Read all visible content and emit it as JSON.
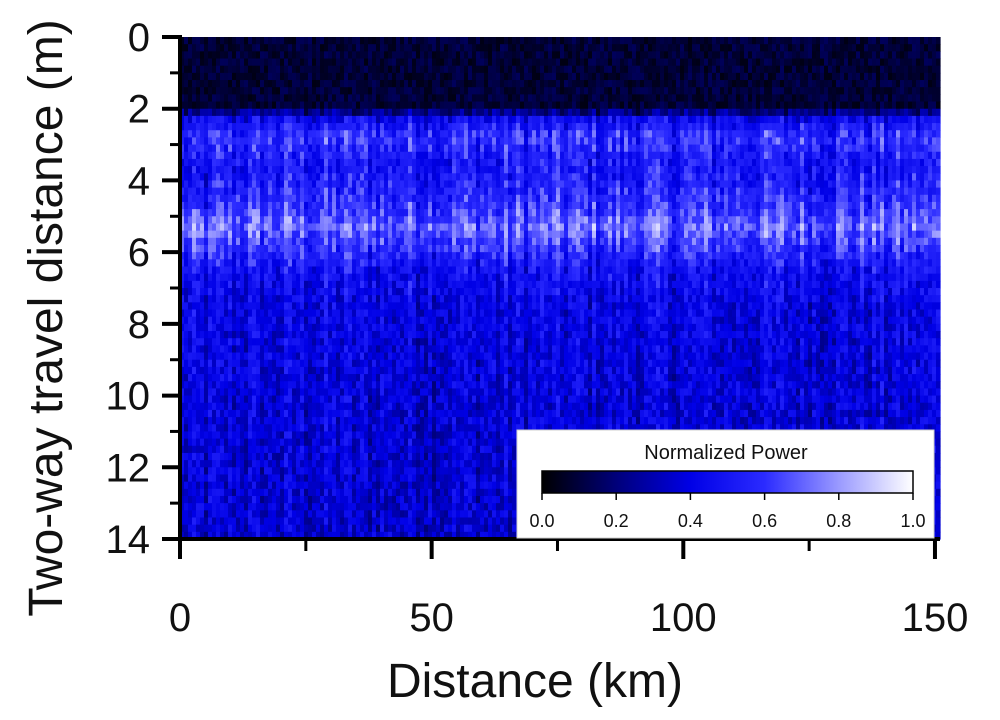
{
  "chart_data": {
    "type": "heatmap",
    "title": "",
    "xlabel": "Distance (km)",
    "ylabel": "Two-way travel distance (m)",
    "xlim": [
      0,
      151
    ],
    "ylim": [
      14,
      0
    ],
    "x_ticks": [
      0,
      50,
      100,
      150
    ],
    "y_ticks": [
      0,
      2,
      4,
      6,
      8,
      10,
      12,
      14
    ],
    "colorbar": {
      "title": "Normalized Power",
      "ticks": [
        "0.0",
        "0.2",
        "0.4",
        "0.6",
        "0.8",
        "1.0"
      ],
      "range": [
        0,
        1
      ],
      "colors": [
        "#000000",
        "#00007a",
        "#0000e6",
        "#2b2bff",
        "#9a9aff",
        "#ffffff"
      ],
      "placement": "bottom-right"
    },
    "depth_profile": {
      "depth_m": [
        0,
        1,
        2,
        2.3,
        2.8,
        3.5,
        4.2,
        4.8,
        5.3,
        5.8,
        6.5,
        7.5,
        9,
        11,
        13,
        14
      ],
      "mean_power": [
        0.05,
        0.08,
        0.12,
        0.45,
        0.62,
        0.5,
        0.55,
        0.62,
        0.72,
        0.62,
        0.48,
        0.42,
        0.4,
        0.38,
        0.37,
        0.36
      ]
    },
    "grid": false
  }
}
